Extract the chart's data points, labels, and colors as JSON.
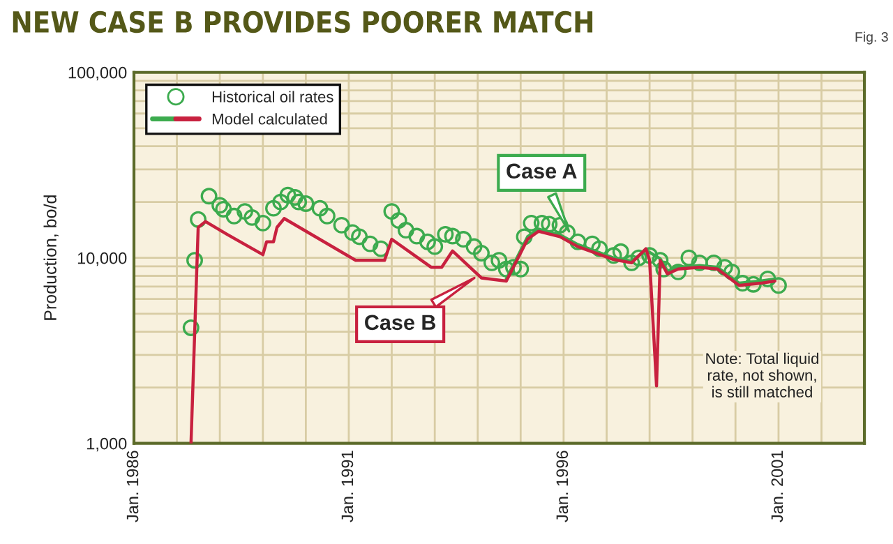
{
  "chart_data": {
    "type": "scatter",
    "title": "NEW CASE B PROVIDES POORER MATCH",
    "ylabel": "Production, bo/d",
    "annotations": [
      "Fig. 3",
      {
        "text": "Case A",
        "x": "1996-03",
        "y": 13300
      },
      {
        "text": "Case B",
        "x": "1994-01",
        "y": 8000
      },
      "Note: Total liquid\nrate, not shown,\nis still matched"
    ],
    "series": [
      {
        "name": "Historical oil rates",
        "color": "#3cab4e",
        "marker": "circle",
        "x": [
          "1987-05",
          "1987-06",
          "1987-07",
          "1987-10",
          "1988-01",
          "1988-02",
          "1988-05",
          "1988-08",
          "1988-10",
          "1989-01",
          "1989-04",
          "1989-06",
          "1989-08",
          "1989-10",
          "1989-11",
          "1990-01",
          "1990-05",
          "1990-07",
          "1990-11",
          "1991-02",
          "1991-04",
          "1991-07",
          "1991-10",
          "1992-01",
          "1992-03",
          "1992-05",
          "1992-08",
          "1992-11",
          "1993-01",
          "1993-04",
          "1993-06",
          "1993-09",
          "1993-12",
          "1994-02",
          "1994-05",
          "1994-07",
          "1994-09",
          "1994-11",
          "1995-01",
          "1995-02",
          "1995-04",
          "1995-07",
          "1995-09",
          "1995-12",
          "1996-02",
          "1996-05",
          "1996-09",
          "1996-11",
          "1997-03",
          "1997-05",
          "1997-08",
          "1997-10",
          "1998-01",
          "1998-04",
          "1998-05",
          "1998-09",
          "1998-12",
          "1999-03",
          "1999-07",
          "1999-10",
          "1999-12",
          "2000-03",
          "2000-06",
          "2000-10",
          "2001-01"
        ],
        "values": [
          4200,
          9700,
          16100,
          21500,
          19200,
          18300,
          16800,
          17800,
          16500,
          15400,
          18500,
          20000,
          21800,
          21200,
          20000,
          19600,
          18500,
          16800,
          15000,
          13700,
          13000,
          11900,
          11200,
          17800,
          15900,
          14100,
          13100,
          12200,
          11500,
          13400,
          13100,
          12600,
          11500,
          10600,
          9400,
          9700,
          8700,
          8900,
          8700,
          13000,
          15400,
          15400,
          15200,
          15000,
          13700,
          12200,
          11900,
          11200,
          10300,
          10800,
          9400,
          10000,
          10300,
          9700,
          8700,
          8400,
          10000,
          9400,
          9400,
          8900,
          8400,
          7300,
          7200,
          7700,
          7100
        ]
      },
      {
        "name": "Model calculated",
        "type": "line",
        "color": "#3cab4e",
        "x": [
          "1994-09",
          "1995-03",
          "1995-06",
          "1995-12",
          "1996-05",
          "1997-03",
          "1997-08",
          "1997-12",
          "1998-04",
          "1998-06",
          "1998-09",
          "1999-03",
          "1999-08",
          "2000-02",
          "2000-08",
          "2000-12"
        ],
        "values": [
          7700,
          13000,
          14300,
          13300,
          11800,
          10000,
          9600,
          11000,
          9900,
          8500,
          8900,
          9100,
          8900,
          7300,
          7500,
          7700
        ]
      },
      {
        "type": "line",
        "color": "#c8213f",
        "x": [
          "1987-05",
          "1987-07",
          "1987-09",
          "1988-03",
          "1989-01",
          "1989-02",
          "1989-04",
          "1989-05",
          "1989-07",
          "1991-03",
          "1991-11",
          "1992-01",
          "1992-12",
          "1993-03",
          "1993-06",
          "1994-02",
          "1994-09",
          "1995-03",
          "1995-06",
          "1995-12",
          "1996-05",
          "1997-03",
          "1997-08",
          "1997-12",
          "1998-01",
          "1998-03",
          "1998-04",
          "1998-06",
          "1998-09",
          "1999-03",
          "1999-08",
          "2000-02",
          "2000-08",
          "2000-12"
        ],
        "values": [
          1000,
          14600,
          15700,
          13400,
          10400,
          12200,
          12200,
          14600,
          16300,
          9700,
          9700,
          12600,
          8900,
          8900,
          10900,
          7800,
          7500,
          12600,
          13900,
          13000,
          11500,
          9800,
          9400,
          11200,
          9700,
          2040,
          9700,
          8200,
          8700,
          8900,
          8700,
          7100,
          7300,
          7500
        ]
      }
    ],
    "xlim": [
      "1986-01",
      "2003-01"
    ],
    "xticks": [
      {
        "value": "1986-01",
        "label": "Jan. 1986"
      },
      {
        "value": "1987-01",
        "label": null
      },
      {
        "value": "1988-01",
        "label": null
      },
      {
        "value": "1989-01",
        "label": null
      },
      {
        "value": "1990-01",
        "label": null
      },
      {
        "value": "1991-01",
        "label": "Jan. 1991"
      },
      {
        "value": "1992-01",
        "label": null
      },
      {
        "value": "1993-01",
        "label": null
      },
      {
        "value": "1994-01",
        "label": null
      },
      {
        "value": "1995-01",
        "label": null
      },
      {
        "value": "1996-01",
        "label": "Jan. 1996"
      },
      {
        "value": "1997-01",
        "label": null
      },
      {
        "value": "1998-01",
        "label": null
      },
      {
        "value": "1999-01",
        "label": null
      },
      {
        "value": "2000-01",
        "label": null
      },
      {
        "value": "2001-01",
        "label": "Jan. 2001"
      },
      {
        "value": "2002-01",
        "label": null
      }
    ],
    "log": "y",
    "ylim": [
      1000,
      100000
    ],
    "yticks": [
      {
        "value": 1000,
        "label": "1,000"
      },
      {
        "value": 10000,
        "label": "10,000"
      },
      {
        "value": 100000,
        "label": "100,000"
      }
    ],
    "grid": true,
    "legend": "top left"
  }
}
